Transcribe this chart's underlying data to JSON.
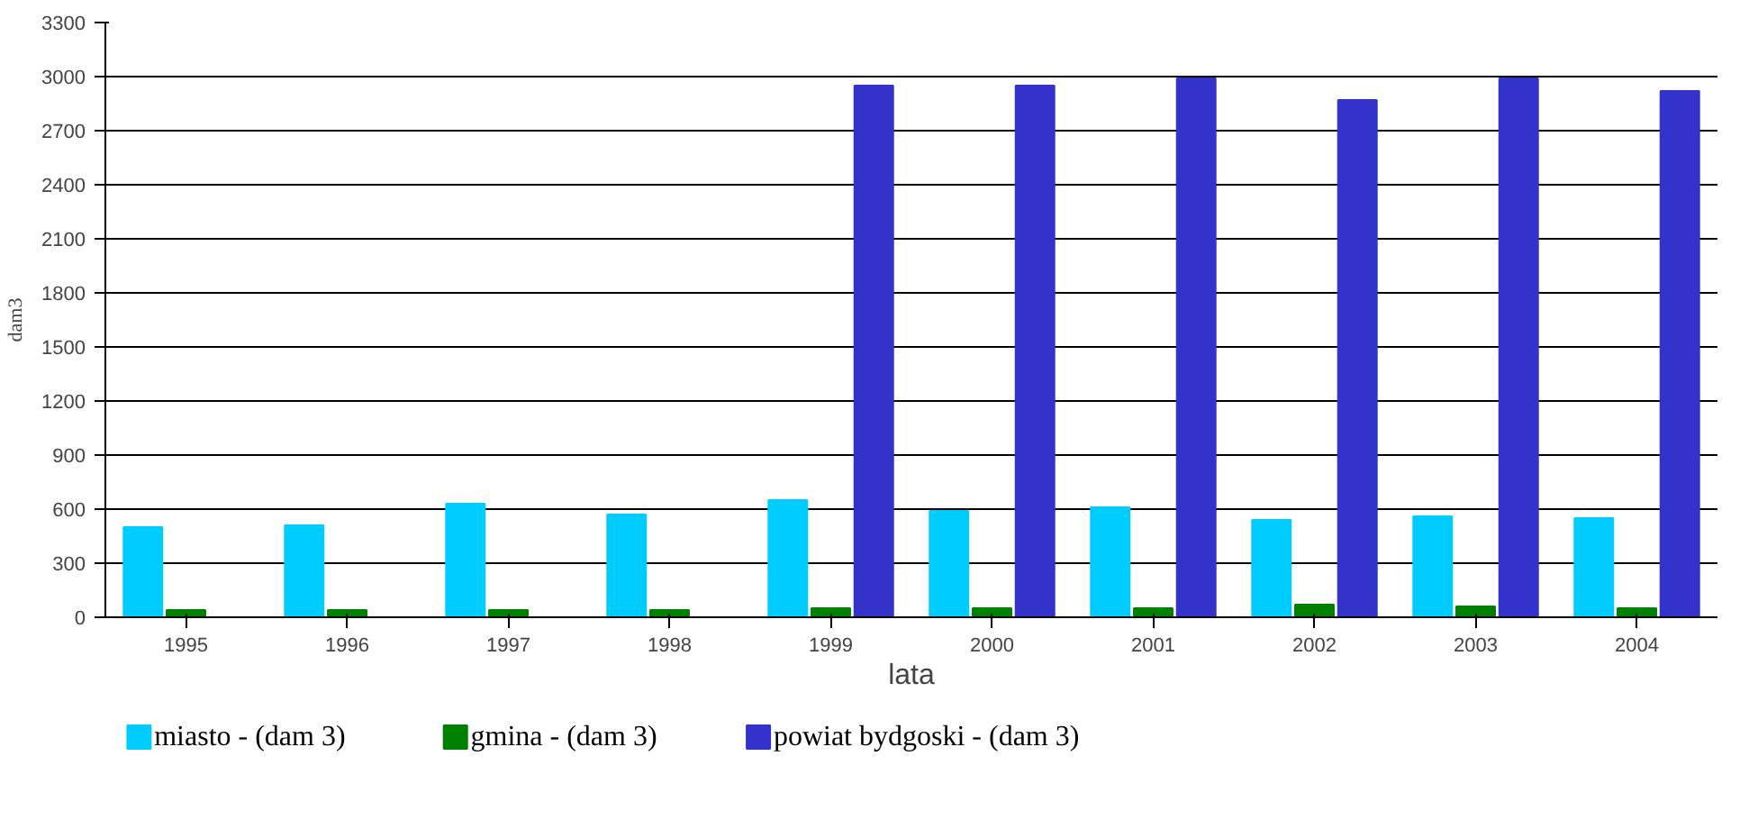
{
  "chart_data": {
    "type": "bar",
    "xlabel": "lata",
    "ylabel": "dam3",
    "categories": [
      "1995",
      "1996",
      "1997",
      "1998",
      "1999",
      "2000",
      "2001",
      "2002",
      "2003",
      "2004"
    ],
    "series": [
      {
        "name": "miasto - (dam 3)",
        "color": "#00ccff",
        "values": [
          500,
          510,
          630,
          570,
          650,
          590,
          610,
          540,
          560,
          550
        ]
      },
      {
        "name": "gmina - (dam 3)",
        "color": "#008000",
        "values": [
          40,
          40,
          40,
          40,
          50,
          50,
          50,
          70,
          60,
          50
        ]
      },
      {
        "name": "powiat bydgoski - (dam 3)",
        "color": "#3333cc",
        "values": [
          null,
          null,
          null,
          null,
          2950,
          2950,
          2990,
          2870,
          2990,
          2920
        ]
      }
    ],
    "ylim": [
      0,
      3300
    ],
    "yticks": [
      0,
      300,
      600,
      900,
      1200,
      1500,
      1800,
      2100,
      2400,
      2700,
      3000,
      3300
    ],
    "grid": "y",
    "legend": "bottom"
  }
}
